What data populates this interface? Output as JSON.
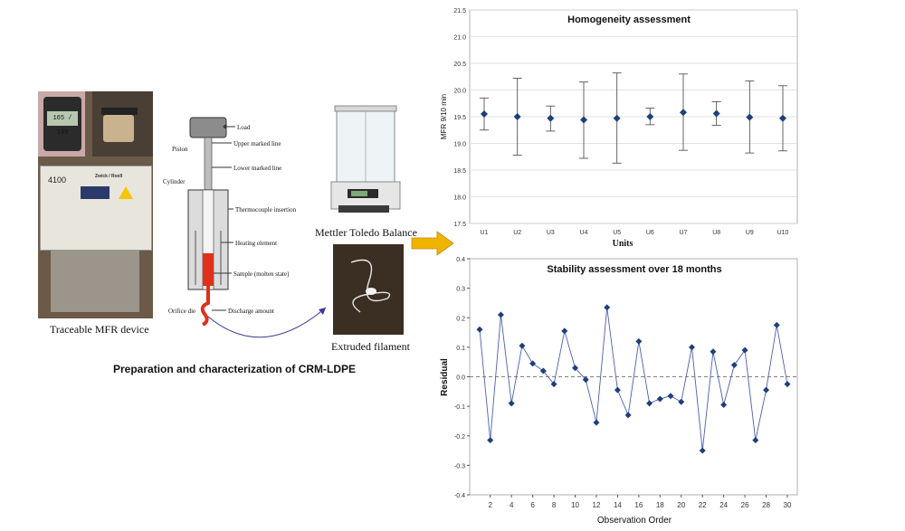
{
  "left": {
    "mfr_device_label": "Traceable MFR device",
    "panel_4100": "4100",
    "brand": "Zwick / Roell",
    "timer_reading": "165 / 148",
    "main_caption": "Preparation and characterization of CRM-LDPE",
    "balance_label": "Mettler Toledo Balance",
    "filament_label": "Extruded filament",
    "schematic": {
      "load": "Load",
      "upper": "Upper marked line",
      "piston": "Piston",
      "lower": "Lower marked line",
      "cylinder": "Cylinder",
      "thermocouple": "Thermocouple insertion",
      "heating": "Heating element",
      "sample": "Sample (molten state)",
      "orifice": "Orifice die",
      "discharge": "Discharge amount"
    }
  },
  "colors": {
    "series": "#1f3f7a",
    "arrow": "#f0b400",
    "heater": "#e0301a",
    "grid": "#d9d9d9"
  },
  "chart_data": [
    {
      "type": "scatter",
      "title": "Homogeneity assessment",
      "xlabel": "Units",
      "ylabel": "MFR 9/10 min",
      "ylim": [
        17.5,
        21.5
      ],
      "yticks": [
        "17.5",
        "18.0",
        "18.5",
        "19.0",
        "19.5",
        "20.0",
        "20.5",
        "21.0",
        "21.5"
      ],
      "categories": [
        "U1",
        "U2",
        "U3",
        "U4",
        "U5",
        "U6",
        "U7",
        "U8",
        "U9",
        "U10"
      ],
      "values": [
        19.55,
        19.5,
        19.47,
        19.44,
        19.47,
        19.5,
        19.58,
        19.56,
        19.49,
        19.47
      ],
      "err_low": [
        19.25,
        18.78,
        19.23,
        18.72,
        18.63,
        19.35,
        18.87,
        19.34,
        18.82,
        18.86
      ],
      "err_high": [
        19.85,
        20.22,
        19.7,
        20.15,
        20.32,
        19.66,
        20.3,
        19.78,
        20.17,
        20.08
      ]
    },
    {
      "type": "line",
      "title": "Stability assessment over 18 months",
      "xlabel": "Observation Order",
      "ylabel": "Residual",
      "ylim": [
        -0.4,
        0.4
      ],
      "xlim": [
        1,
        30
      ],
      "yticks": [
        "-0.4",
        "-0.3",
        "-0.2",
        "-0.1",
        "0.0",
        "0.1",
        "0.2",
        "0.3",
        "0.4"
      ],
      "xticks": [
        "2",
        "4",
        "6",
        "8",
        "10",
        "12",
        "14",
        "16",
        "18",
        "20",
        "22",
        "24",
        "26",
        "28",
        "30"
      ],
      "reference_line": 0.0,
      "x": [
        1,
        2,
        3,
        4,
        5,
        6,
        7,
        8,
        9,
        10,
        11,
        12,
        13,
        14,
        15,
        16,
        17,
        18,
        19,
        20,
        21,
        22,
        23,
        24,
        25,
        26,
        27,
        28,
        29,
        30
      ],
      "values": [
        0.16,
        -0.215,
        0.21,
        -0.09,
        0.105,
        0.045,
        0.02,
        -0.025,
        0.155,
        0.03,
        -0.01,
        -0.155,
        0.235,
        -0.045,
        -0.13,
        0.12,
        -0.09,
        -0.075,
        -0.065,
        -0.085,
        0.1,
        -0.25,
        0.085,
        -0.095,
        0.04,
        0.09,
        -0.215,
        -0.045,
        0.175,
        -0.025
      ]
    }
  ]
}
